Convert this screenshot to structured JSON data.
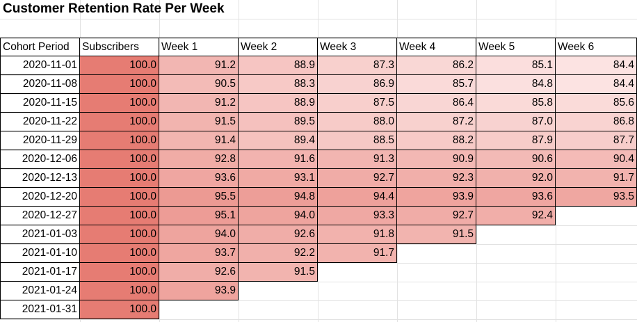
{
  "title": "Customer Retention Rate Per Week",
  "chart_data": {
    "type": "heatmap",
    "title": "Customer Retention Rate Per Week",
    "columns": [
      "Cohort Period",
      "Subscribers",
      "Week 1",
      "Week 2",
      "Week 3",
      "Week 4",
      "Week 5",
      "Week 6"
    ],
    "rows": [
      {
        "cohort": "2020-11-01",
        "values": [
          "100.0",
          "91.2",
          "88.9",
          "87.3",
          "86.2",
          "85.1",
          "84.4"
        ]
      },
      {
        "cohort": "2020-11-08",
        "values": [
          "100.0",
          "90.5",
          "88.3",
          "86.9",
          "85.7",
          "84.8",
          "84.4"
        ]
      },
      {
        "cohort": "2020-11-15",
        "values": [
          "100.0",
          "91.2",
          "88.9",
          "87.5",
          "86.4",
          "85.8",
          "85.6"
        ]
      },
      {
        "cohort": "2020-11-22",
        "values": [
          "100.0",
          "91.5",
          "89.5",
          "88.0",
          "87.2",
          "87.0",
          "86.8"
        ]
      },
      {
        "cohort": "2020-11-29",
        "values": [
          "100.0",
          "91.4",
          "89.4",
          "88.5",
          "88.2",
          "87.9",
          "87.7"
        ]
      },
      {
        "cohort": "2020-12-06",
        "values": [
          "100.0",
          "92.8",
          "91.6",
          "91.3",
          "90.9",
          "90.6",
          "90.4"
        ]
      },
      {
        "cohort": "2020-12-13",
        "values": [
          "100.0",
          "93.6",
          "93.1",
          "92.7",
          "92.3",
          "92.0",
          "91.7"
        ]
      },
      {
        "cohort": "2020-12-20",
        "values": [
          "100.0",
          "95.5",
          "94.8",
          "94.4",
          "93.9",
          "93.6",
          "93.5"
        ]
      },
      {
        "cohort": "2020-12-27",
        "values": [
          "100.0",
          "95.1",
          "94.0",
          "93.3",
          "92.7",
          "92.4"
        ]
      },
      {
        "cohort": "2021-01-03",
        "values": [
          "100.0",
          "94.0",
          "92.6",
          "91.8",
          "91.5"
        ]
      },
      {
        "cohort": "2021-01-10",
        "values": [
          "100.0",
          "93.7",
          "92.2",
          "91.7"
        ]
      },
      {
        "cohort": "2021-01-17",
        "values": [
          "100.0",
          "92.6",
          "91.5"
        ]
      },
      {
        "cohort": "2021-01-24",
        "values": [
          "100.0",
          "93.9"
        ]
      },
      {
        "cohort": "2021-01-31",
        "values": [
          "100.0"
        ]
      }
    ],
    "color_scale": {
      "min_value": 84.4,
      "max_value": 100.0,
      "min_color": "#fce3e2",
      "max_color": "#e67c73"
    },
    "grid": true
  }
}
